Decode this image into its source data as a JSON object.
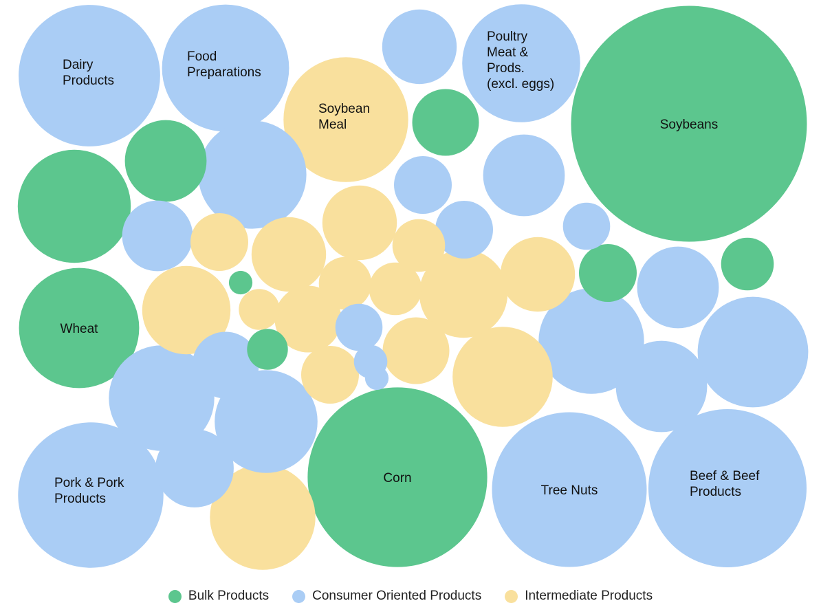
{
  "chart_data": {
    "type": "bubble",
    "title": "",
    "groups": [
      {
        "key": "bulk",
        "name": "Bulk Products",
        "color": "#5cc68e"
      },
      {
        "key": "consumer",
        "name": "Consumer Oriented Products",
        "color": "#aacdf5"
      },
      {
        "key": "intermediate",
        "name": "Intermediate Products",
        "color": "#f9e09d"
      }
    ],
    "bubbles": [
      {
        "label": "Soybeans",
        "group": "bulk",
        "value": 100
      },
      {
        "label": "Corn",
        "group": "bulk",
        "value": 58
      },
      {
        "label": "Beef & Beef Products",
        "group": "consumer",
        "value": 45
      },
      {
        "label": "Tree Nuts",
        "group": "consumer",
        "value": 43
      },
      {
        "label": "Pork & Pork Products",
        "group": "consumer",
        "value": 38
      },
      {
        "label": "Dairy Products",
        "group": "consumer",
        "value": 36
      },
      {
        "label": "Food Preparations",
        "group": "consumer",
        "value": 29
      },
      {
        "label": "Wheat",
        "group": "bulk",
        "value": 26
      },
      {
        "label": "Poultry Meat & Prods. (excl. eggs)",
        "group": "consumer",
        "value": 25
      },
      {
        "label": "Soybean Meal",
        "group": "intermediate",
        "value": 28
      },
      {
        "label": "",
        "group": "bulk",
        "value": 23
      },
      {
        "label": "",
        "group": "consumer",
        "value": 22
      },
      {
        "label": "",
        "group": "consumer",
        "value": 21
      },
      {
        "label": "",
        "group": "intermediate",
        "value": 20
      },
      {
        "label": "",
        "group": "consumer",
        "value": 20
      },
      {
        "label": "",
        "group": "consumer",
        "value": 20
      },
      {
        "label": "",
        "group": "consumer",
        "value": 19
      },
      {
        "label": "",
        "group": "intermediate",
        "value": 18
      },
      {
        "label": "",
        "group": "intermediate",
        "value": 14
      },
      {
        "label": "",
        "group": "intermediate",
        "value": 14
      },
      {
        "label": "",
        "group": "consumer",
        "value": 15
      },
      {
        "label": "",
        "group": "consumer",
        "value": 12
      },
      {
        "label": "",
        "group": "bulk",
        "value": 12
      },
      {
        "label": "",
        "group": "consumer",
        "value": 12
      },
      {
        "label": "",
        "group": "intermediate",
        "value": 10
      },
      {
        "label": "",
        "group": "consumer",
        "value": 11
      },
      {
        "label": "",
        "group": "consumer",
        "value": 10
      },
      {
        "label": "",
        "group": "consumer",
        "value": 9
      },
      {
        "label": "",
        "group": "consumer",
        "value": 8
      },
      {
        "label": "",
        "group": "intermediate",
        "value": 10
      },
      {
        "label": "",
        "group": "intermediate",
        "value": 10
      },
      {
        "label": "",
        "group": "bulk",
        "value": 8
      },
      {
        "label": "",
        "group": "intermediate",
        "value": 8
      },
      {
        "label": "",
        "group": "intermediate",
        "value": 8
      },
      {
        "label": "",
        "group": "intermediate",
        "value": 6
      },
      {
        "label": "",
        "group": "consumer",
        "value": 6
      },
      {
        "label": "",
        "group": "bulk",
        "value": 6
      },
      {
        "label": "",
        "group": "consumer",
        "value": 6
      },
      {
        "label": "",
        "group": "intermediate",
        "value": 6
      },
      {
        "label": "",
        "group": "intermediate",
        "value": 5
      },
      {
        "label": "",
        "group": "intermediate",
        "value": 5
      },
      {
        "label": "",
        "group": "intermediate",
        "value": 5
      },
      {
        "label": "",
        "group": "consumer",
        "value": 4
      },
      {
        "label": "",
        "group": "bulk",
        "value": 5
      },
      {
        "label": "",
        "group": "consumer",
        "value": 4
      },
      {
        "label": "",
        "group": "bulk",
        "value": 3
      },
      {
        "label": "",
        "group": "intermediate",
        "value": 3
      },
      {
        "label": "",
        "group": "consumer",
        "value": 2
      },
      {
        "label": "",
        "group": "bulk",
        "value": 1
      },
      {
        "label": "",
        "group": "consumer",
        "value": 1
      },
      {
        "label": "",
        "group": "consumer",
        "value": 0.5
      },
      {
        "label": "",
        "group": "intermediate",
        "value": 0.4
      }
    ],
    "legend_position": "bottom-center"
  }
}
